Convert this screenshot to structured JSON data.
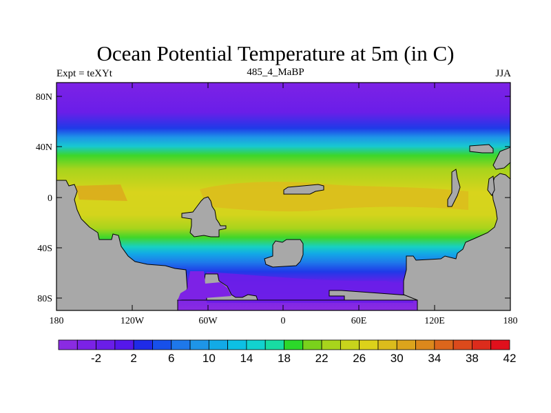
{
  "figure": {
    "title": "Ocean Potential Temperature at 5m (in C)",
    "left_label": "Expt = teXYt",
    "center_label": "485_4_MaBP",
    "right_label": "JJA"
  },
  "axes": {
    "x_ticks": [
      "180",
      "120W",
      "60W",
      "0",
      "60E",
      "120E",
      "180"
    ],
    "y_ticks": [
      "80N",
      "40N",
      "0",
      "40S",
      "80S"
    ],
    "lon_range": [
      -180,
      180
    ],
    "lat_range": [
      -90,
      90
    ]
  },
  "colors": {
    "land": "#a8a8a8",
    "frame": "#000000"
  },
  "colorbar": {
    "labels": [
      "-2",
      "2",
      "6",
      "10",
      "14",
      "18",
      "22",
      "26",
      "30",
      "34",
      "38",
      "42"
    ],
    "colors": [
      "#8a2be2",
      "#7b22e6",
      "#6a1ee8",
      "#5518ea",
      "#1f2be8",
      "#1750ea",
      "#1e78ea",
      "#1e95e8",
      "#12aae6",
      "#0dc0e4",
      "#12d2cf",
      "#18dca3",
      "#2cd82a",
      "#7ad21c",
      "#a8d41c",
      "#c8d41c",
      "#dcd21a",
      "#dcbc1c",
      "#dca41c",
      "#dc881c",
      "#dc661c",
      "#dc4a1c",
      "#dc2c1c",
      "#e0101c"
    ]
  }
}
